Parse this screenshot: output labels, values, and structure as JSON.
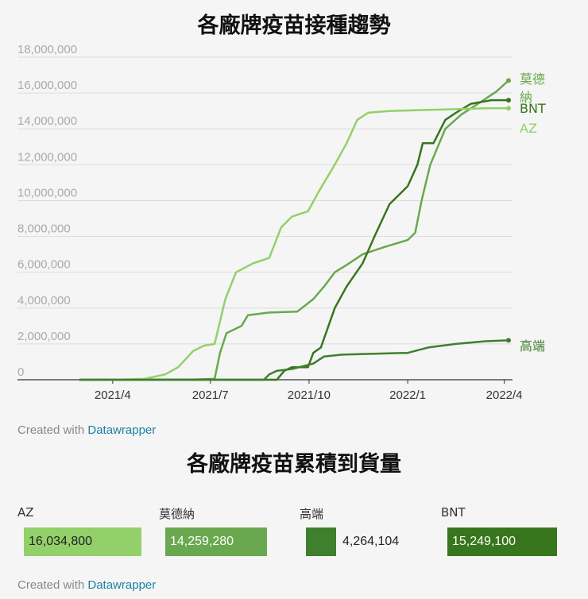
{
  "chart_title": "各廠牌疫苗接種趨勢",
  "chart_data": {
    "type": "line",
    "title": "各廠牌疫苗接種趨勢",
    "x_ticks": [
      "2021/4",
      "2021/7",
      "2021/10",
      "2022/1",
      "2022/4"
    ],
    "y_ticks": [
      "0",
      "2,000,000",
      "4,000,000",
      "6,000,000",
      "8,000,000",
      "10,000,000",
      "12,000,000",
      "14,000,000",
      "16,000,000",
      "18,000,000"
    ],
    "ylim": [
      0,
      18000000
    ],
    "grid": true,
    "series": [
      {
        "name": "莫德納",
        "color": "#6aa84f",
        "points": [
          [
            "2021-03-01",
            0
          ],
          [
            "2021-06-15",
            10000
          ],
          [
            "2021-07-05",
            50000
          ],
          [
            "2021-07-10",
            1500000
          ],
          [
            "2021-07-16",
            2600000
          ],
          [
            "2021-07-30",
            3000000
          ],
          [
            "2021-08-05",
            3600000
          ],
          [
            "2021-08-25",
            3750000
          ],
          [
            "2021-09-20",
            3800000
          ],
          [
            "2021-10-05",
            4500000
          ],
          [
            "2021-10-15",
            5200000
          ],
          [
            "2021-10-25",
            6000000
          ],
          [
            "2021-11-05",
            6400000
          ],
          [
            "2021-11-20",
            7000000
          ],
          [
            "2021-12-10",
            7400000
          ],
          [
            "2022-01-01",
            7800000
          ],
          [
            "2022-01-08",
            8200000
          ],
          [
            "2022-01-14",
            10000000
          ],
          [
            "2022-01-22",
            12000000
          ],
          [
            "2022-02-05",
            14000000
          ],
          [
            "2022-02-20",
            14800000
          ],
          [
            "2022-03-10",
            15500000
          ],
          [
            "2022-03-25",
            16100000
          ],
          [
            "2022-04-05",
            16700000
          ]
        ]
      },
      {
        "name": "BNT",
        "color": "#38761d",
        "points": [
          [
            "2021-03-01",
            0
          ],
          [
            "2021-09-01",
            0
          ],
          [
            "2021-09-08",
            500000
          ],
          [
            "2021-09-15",
            700000
          ],
          [
            "2021-09-30",
            700000
          ],
          [
            "2021-10-05",
            1500000
          ],
          [
            "2021-10-12",
            1800000
          ],
          [
            "2021-10-25",
            4000000
          ],
          [
            "2021-11-05",
            5200000
          ],
          [
            "2021-11-20",
            6500000
          ],
          [
            "2021-12-01",
            8000000
          ],
          [
            "2021-12-15",
            9800000
          ],
          [
            "2022-01-01",
            10800000
          ],
          [
            "2022-01-10",
            12000000
          ],
          [
            "2022-01-15",
            13200000
          ],
          [
            "2022-01-25",
            13200000
          ],
          [
            "2022-02-05",
            14500000
          ],
          [
            "2022-02-15",
            14900000
          ],
          [
            "2022-03-01",
            15400000
          ],
          [
            "2022-03-20",
            15600000
          ],
          [
            "2022-04-05",
            15600000
          ]
        ]
      },
      {
        "name": "AZ",
        "color": "#93d06a",
        "points": [
          [
            "2021-03-01",
            0
          ],
          [
            "2021-04-01",
            0
          ],
          [
            "2021-05-01",
            50000
          ],
          [
            "2021-05-20",
            300000
          ],
          [
            "2021-06-01",
            700000
          ],
          [
            "2021-06-15",
            1600000
          ],
          [
            "2021-06-25",
            1900000
          ],
          [
            "2021-07-05",
            2000000
          ],
          [
            "2021-07-15",
            4500000
          ],
          [
            "2021-07-25",
            6000000
          ],
          [
            "2021-08-10",
            6500000
          ],
          [
            "2021-08-25",
            6800000
          ],
          [
            "2021-09-05",
            8500000
          ],
          [
            "2021-09-15",
            9100000
          ],
          [
            "2021-09-30",
            9400000
          ],
          [
            "2021-10-10",
            10500000
          ],
          [
            "2021-10-25",
            12000000
          ],
          [
            "2021-11-05",
            13200000
          ],
          [
            "2021-11-15",
            14500000
          ],
          [
            "2021-11-25",
            14900000
          ],
          [
            "2021-12-15",
            15000000
          ],
          [
            "2022-01-15",
            15050000
          ],
          [
            "2022-02-15",
            15100000
          ],
          [
            "2022-03-15",
            15150000
          ],
          [
            "2022-04-05",
            15150000
          ]
        ]
      },
      {
        "name": "高端",
        "color": "#3f7f2e",
        "points": [
          [
            "2021-03-01",
            0
          ],
          [
            "2021-08-20",
            0
          ],
          [
            "2021-08-25",
            300000
          ],
          [
            "2021-09-01",
            500000
          ],
          [
            "2021-09-15",
            600000
          ],
          [
            "2021-10-05",
            900000
          ],
          [
            "2021-10-15",
            1300000
          ],
          [
            "2021-11-01",
            1400000
          ],
          [
            "2021-12-01",
            1450000
          ],
          [
            "2022-01-01",
            1500000
          ],
          [
            "2022-01-20",
            1800000
          ],
          [
            "2022-02-15",
            2000000
          ],
          [
            "2022-03-15",
            2150000
          ],
          [
            "2022-04-05",
            2200000
          ]
        ]
      }
    ]
  },
  "credit": {
    "prefix": "Created with ",
    "link": "Datawrapper"
  },
  "totals_title": "各廠牌疫苗累積到貨量",
  "totals": [
    {
      "label": "AZ",
      "value": "16,034,800",
      "color": "#93d06a",
      "fraction": 1.0
    },
    {
      "label": "莫德納",
      "value": "14,259,280",
      "color": "#6aa84f",
      "fraction": 0.889
    },
    {
      "label": "高端",
      "value": "4,264,104",
      "color": "#3f7f2e",
      "fraction": 0.266
    },
    {
      "label": "BNT",
      "value": "15,249,100",
      "color": "#38761d",
      "fraction": 0.951
    }
  ]
}
